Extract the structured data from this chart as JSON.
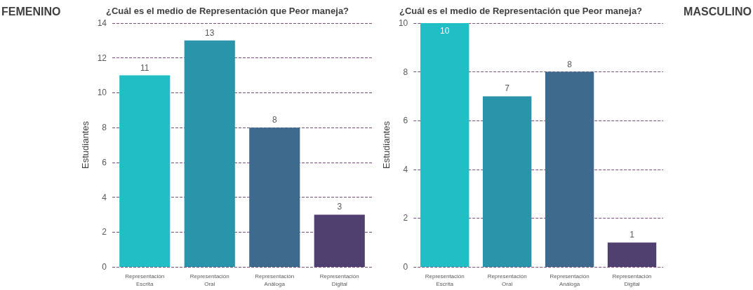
{
  "chart_data": [
    {
      "type": "bar",
      "title": "¿Cuál es el medio de Representación que Peor maneja?",
      "ylabel": "Estudiantes",
      "annotations": [
        "FEMENINO"
      ],
      "categories": [
        "Representación\nEscrita",
        "Representación\nOral",
        "Representación\nAnáloga",
        "Representación\nDigital"
      ],
      "values": [
        11,
        13,
        8,
        3
      ],
      "colors": [
        "#22bec6",
        "#2a94aa",
        "#3e6a8d",
        "#4f4070"
      ],
      "ylim": [
        0,
        14
      ],
      "yticks": [
        0,
        2,
        4,
        6,
        8,
        10,
        12,
        14
      ],
      "grid": "y",
      "data_labels": true
    },
    {
      "type": "bar",
      "title": "¿Cuál es el medio de Representación que Peor maneja?",
      "ylabel": "Estudiantes",
      "annotations": [
        "MASCULINO"
      ],
      "categories": [
        "Representación\nEscrita",
        "Representación\nOral",
        "Representación\nAnáloga",
        "Representación\nDigital"
      ],
      "values": [
        10,
        7,
        8,
        1
      ],
      "colors": [
        "#22bec6",
        "#2a94aa",
        "#3e6a8d",
        "#4f4070"
      ],
      "ylim": [
        0,
        10
      ],
      "yticks": [
        0,
        2,
        4,
        6,
        8,
        10
      ],
      "grid": "y",
      "data_labels": true
    }
  ]
}
